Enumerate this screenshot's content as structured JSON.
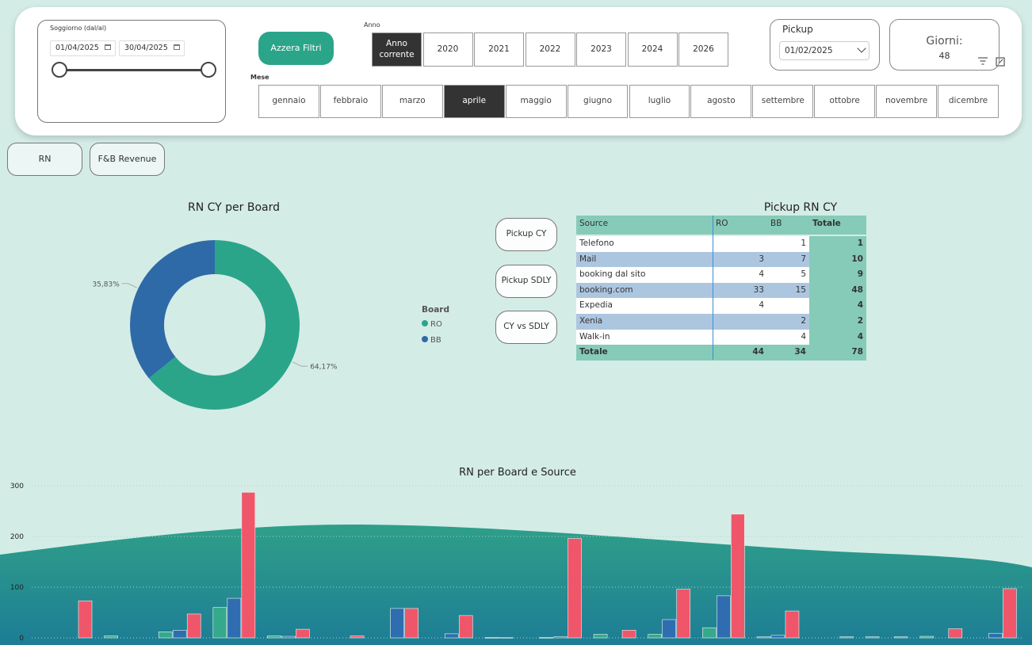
{
  "filters": {
    "soggiorno": {
      "label": "Soggiorno (dal/al)",
      "from": "01/04/2025",
      "to": "30/04/2025"
    },
    "reset": "Azzera Filtri",
    "anno": {
      "label": "Anno",
      "options": [
        "Anno corrente",
        "2020",
        "2021",
        "2022",
        "2023",
        "2024",
        "2026"
      ],
      "selected": 0
    },
    "mese": {
      "label": "Mese",
      "options": [
        "gennaio",
        "febbraio",
        "marzo",
        "aprile",
        "maggio",
        "giugno",
        "luglio",
        "agosto",
        "settembre",
        "ottobre",
        "novembre",
        "dicembre"
      ],
      "selected": 3
    },
    "pickup": {
      "label": "Pickup",
      "date": "01/02/2025"
    },
    "giorni": {
      "label": "Giorni:",
      "value": 48
    }
  },
  "tabs": [
    "RN",
    "F&B Revenue"
  ],
  "pickup_buttons": [
    "Pickup CY",
    "Pickup SDLY",
    "CY vs SDLY"
  ],
  "table": {
    "title": "Pickup RN CY",
    "columns": [
      "Source",
      "RO",
      "BB",
      "Totale"
    ],
    "rows": [
      [
        "Telefono",
        null,
        1,
        1
      ],
      [
        "Mail",
        3,
        7,
        10
      ],
      [
        "booking dal sito",
        4,
        5,
        9
      ],
      [
        "booking.com",
        33,
        15,
        48
      ],
      [
        "Expedia",
        4,
        null,
        4
      ],
      [
        "Xenia",
        null,
        2,
        2
      ],
      [
        "Walk-in",
        null,
        4,
        4
      ]
    ],
    "total": [
      "Totale",
      44,
      34,
      78
    ]
  },
  "chart_data": [
    {
      "type": "donut",
      "title": "RN CY per Board",
      "legend_title": "Board",
      "categories": [
        "RO",
        "BB"
      ],
      "values": [
        64.17,
        35.83
      ],
      "value_labels": [
        "64,17%",
        "35,83%"
      ],
      "colors": [
        "#2ba58a",
        "#2e6aa8"
      ]
    },
    {
      "type": "bar",
      "title": "RN per Board e Source",
      "categories": [
        null,
        null,
        null,
        null,
        null,
        null,
        null,
        null,
        null,
        null,
        null,
        null,
        null,
        null,
        null,
        null,
        null,
        null
      ],
      "series": [
        {
          "color": "#35a98b",
          "values": [
            null,
            4,
            12,
            60,
            4,
            null,
            null,
            null,
            1,
            1,
            7,
            7,
            20,
            2,
            null,
            2,
            3,
            null
          ]
        },
        {
          "color": "#2f6db0",
          "values": [
            null,
            null,
            15,
            78,
            3,
            null,
            58,
            8,
            1,
            2,
            null,
            36,
            83,
            5,
            null,
            null,
            null,
            9
          ]
        },
        {
          "color": "#f0566a",
          "values": [
            73,
            null,
            47,
            287,
            17,
            4,
            58,
            44,
            null,
            196,
            15,
            96,
            244,
            53,
            2,
            2,
            18,
            97
          ]
        }
      ],
      "ylim": [
        0,
        300
      ],
      "yticks": [
        0,
        100,
        200,
        300
      ],
      "grid": true
    }
  ]
}
